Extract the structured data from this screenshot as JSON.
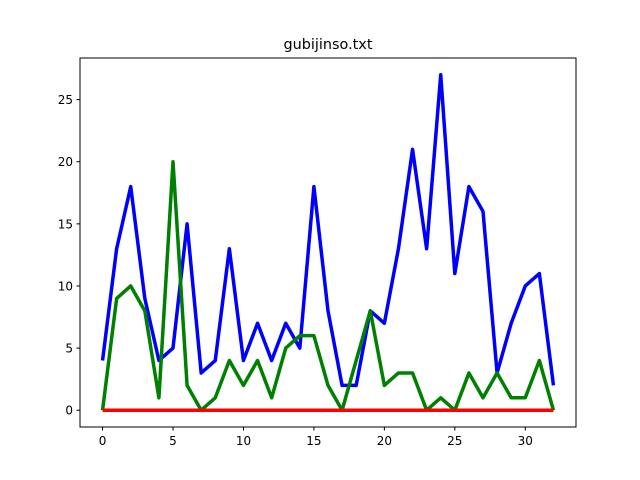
{
  "chart_data": {
    "type": "line",
    "title": "gubijinso.txt",
    "xlabel": "",
    "ylabel": "",
    "xlim": [
      -1.6,
      33.6
    ],
    "ylim": [
      -1.35,
      28.35
    ],
    "xticks": [
      0,
      5,
      10,
      15,
      20,
      25,
      30
    ],
    "yticks": [
      0,
      5,
      10,
      15,
      20,
      25
    ],
    "x": [
      0,
      1,
      2,
      3,
      4,
      5,
      6,
      7,
      8,
      9,
      10,
      11,
      12,
      13,
      14,
      15,
      16,
      17,
      18,
      19,
      20,
      21,
      22,
      23,
      24,
      25,
      26,
      27,
      28,
      29,
      30,
      31,
      32
    ],
    "series": [
      {
        "name": "blue",
        "color": "#0000ff",
        "values": [
          4,
          13,
          18,
          9,
          4,
          5,
          15,
          3,
          4,
          13,
          4,
          7,
          4,
          7,
          5,
          18,
          8,
          2,
          2,
          8,
          7,
          13,
          21,
          13,
          27,
          11,
          18,
          16,
          3,
          7,
          10,
          11,
          2
        ]
      },
      {
        "name": "green",
        "color": "#008000",
        "values": [
          0,
          9,
          10,
          8,
          1,
          20,
          2,
          0,
          1,
          4,
          2,
          4,
          1,
          5,
          6,
          6,
          2,
          0,
          4,
          8,
          2,
          3,
          3,
          0,
          1,
          0,
          3,
          1,
          3,
          1,
          1,
          4,
          0
        ]
      },
      {
        "name": "red",
        "color": "#ff0000",
        "values": [
          0,
          0,
          0,
          0,
          0,
          0,
          0,
          0,
          0,
          0,
          0,
          0,
          0,
          0,
          0,
          0,
          0,
          0,
          0,
          0,
          0,
          0,
          0,
          0,
          0,
          0,
          0,
          0,
          0,
          0,
          0,
          0,
          0
        ]
      }
    ]
  }
}
